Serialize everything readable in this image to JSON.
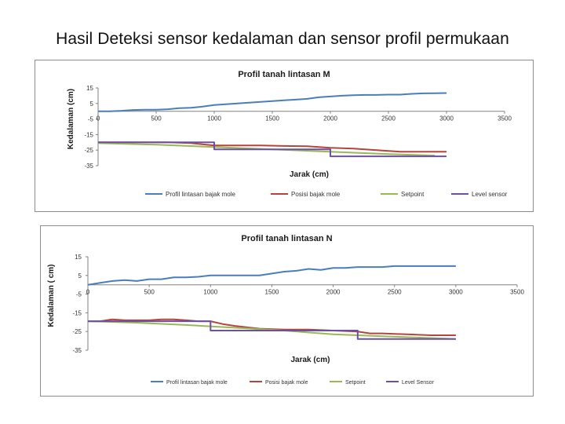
{
  "slide": {
    "title": "Hasil Deteksi sensor kedalaman dan sensor profil permukaan"
  },
  "colors": {
    "profil": "#4a7eba",
    "posisi": "#b5443e",
    "setpoint": "#98b955",
    "level": "#6d51a0",
    "axis": "#808080",
    "frame": "#8c8c8c"
  },
  "chart_data": [
    {
      "id": "M",
      "type": "line",
      "title": "Profil tanah  lintasan  M",
      "xlabel": "Jarak  (cm)",
      "ylabel": "Kedalaman  (cm)",
      "xlim": [
        0,
        3500
      ],
      "ylim": [
        -35,
        15
      ],
      "xticks": [
        "0",
        "500",
        "1000",
        "1500",
        "2000",
        "2500",
        "3000",
        "3500"
      ],
      "yticks": [
        "15",
        "5",
        "-5",
        "-15",
        "-25",
        "-35"
      ],
      "legend_position": "bottom",
      "series": [
        {
          "name": "Profil lintasan bajak mole",
          "color_key": "profil",
          "x": [
            0,
            100,
            200,
            300,
            400,
            500,
            600,
            700,
            800,
            900,
            1000,
            1100,
            1200,
            1300,
            1400,
            1500,
            1600,
            1700,
            1800,
            1900,
            2000,
            2100,
            2200,
            2300,
            2400,
            2500,
            2600,
            2700,
            2800,
            2900,
            3000
          ],
          "y": [
            0,
            0,
            0.3,
            0.8,
            1,
            1,
            1.3,
            2,
            2.2,
            3,
            4,
            4.5,
            5,
            5.5,
            6,
            6.5,
            7,
            7.5,
            8,
            9,
            9.5,
            10,
            10.3,
            10.5,
            10.5,
            10.7,
            10.7,
            11.2,
            11.5,
            11.6,
            11.7
          ]
        },
        {
          "name": "Posisi bajak mole",
          "color_key": "posisi",
          "x": [
            0,
            200,
            400,
            600,
            800,
            1000,
            1200,
            1400,
            1600,
            1800,
            1900,
            2000,
            2200,
            2400,
            2500,
            2600,
            2800,
            3000
          ],
          "y": [
            -20,
            -20,
            -20,
            -20,
            -20.5,
            -22,
            -22,
            -22,
            -22.3,
            -22.5,
            -23,
            -23.5,
            -24,
            -25,
            -25.5,
            -26,
            -26,
            -26
          ]
        },
        {
          "name": "Setpoint",
          "color_key": "setpoint",
          "x": [
            0,
            500,
            1000,
            1500,
            2000,
            2500,
            2900
          ],
          "y": [
            -20.5,
            -21.5,
            -23,
            -24.5,
            -26,
            -27.5,
            -28.5
          ]
        },
        {
          "name": "Level sensor",
          "color_key": "level",
          "x": [
            0,
            1000,
            1000,
            2000,
            2000,
            3000
          ],
          "y": [
            -20,
            -20,
            -24.5,
            -24.5,
            -29,
            -29
          ]
        }
      ]
    },
    {
      "id": "N",
      "type": "line",
      "title": "Profil tanah  lintasan  N",
      "xlabel": "Jarak (cm)",
      "ylabel": "Kedalaman ( cm)",
      "xlim": [
        0,
        3500
      ],
      "ylim": [
        -35,
        15
      ],
      "xticks": [
        "0",
        "500",
        "1000",
        "1500",
        "2000",
        "2500",
        "3000",
        "3500"
      ],
      "yticks": [
        "15",
        "5",
        "-5",
        "-15",
        "-25",
        "-35"
      ],
      "legend_position": "bottom",
      "series": [
        {
          "name": "Profil lintasan bajak mole",
          "color_key": "profil",
          "x": [
            0,
            100,
            200,
            300,
            400,
            500,
            600,
            700,
            800,
            900,
            1000,
            1100,
            1200,
            1300,
            1400,
            1500,
            1600,
            1700,
            1800,
            1900,
            2000,
            2100,
            2200,
            2300,
            2400,
            2500,
            2600,
            2700,
            2800,
            2900,
            3000
          ],
          "y": [
            0,
            1,
            2,
            2.5,
            2,
            3,
            3,
            4,
            4,
            4.3,
            5,
            5,
            5,
            5,
            5,
            6,
            7,
            7.5,
            8.5,
            8,
            9,
            9,
            9.5,
            9.5,
            9.5,
            10,
            10,
            10,
            10,
            10,
            10
          ]
        },
        {
          "name": "Posisi bajak mole",
          "color_key": "posisi",
          "x": [
            0,
            100,
            200,
            300,
            400,
            500,
            600,
            700,
            800,
            900,
            1000,
            1100,
            1200,
            1400,
            1600,
            1800,
            2000,
            2200,
            2300,
            2400,
            2600,
            2800,
            3000
          ],
          "y": [
            -19.5,
            -19.5,
            -18.5,
            -19,
            -19,
            -19,
            -18.5,
            -18.5,
            -19,
            -19.5,
            -19.5,
            -21,
            -22,
            -23.5,
            -24,
            -24,
            -24.5,
            -25,
            -26,
            -26,
            -26.5,
            -27,
            -27
          ]
        },
        {
          "name": "Setpoint",
          "color_key": "setpoint",
          "x": [
            0,
            400,
            800,
            1200,
            1600,
            2000,
            2400,
            2800,
            3000
          ],
          "y": [
            -19.5,
            -20.3,
            -21.5,
            -23,
            -24.5,
            -26.5,
            -27.5,
            -28.5,
            -29
          ]
        },
        {
          "name": "Level Sensor",
          "color_key": "level",
          "x": [
            0,
            1000,
            1000,
            2200,
            2200,
            3000
          ],
          "y": [
            -19.5,
            -19.5,
            -24.5,
            -24.5,
            -29,
            -29
          ]
        }
      ]
    }
  ]
}
